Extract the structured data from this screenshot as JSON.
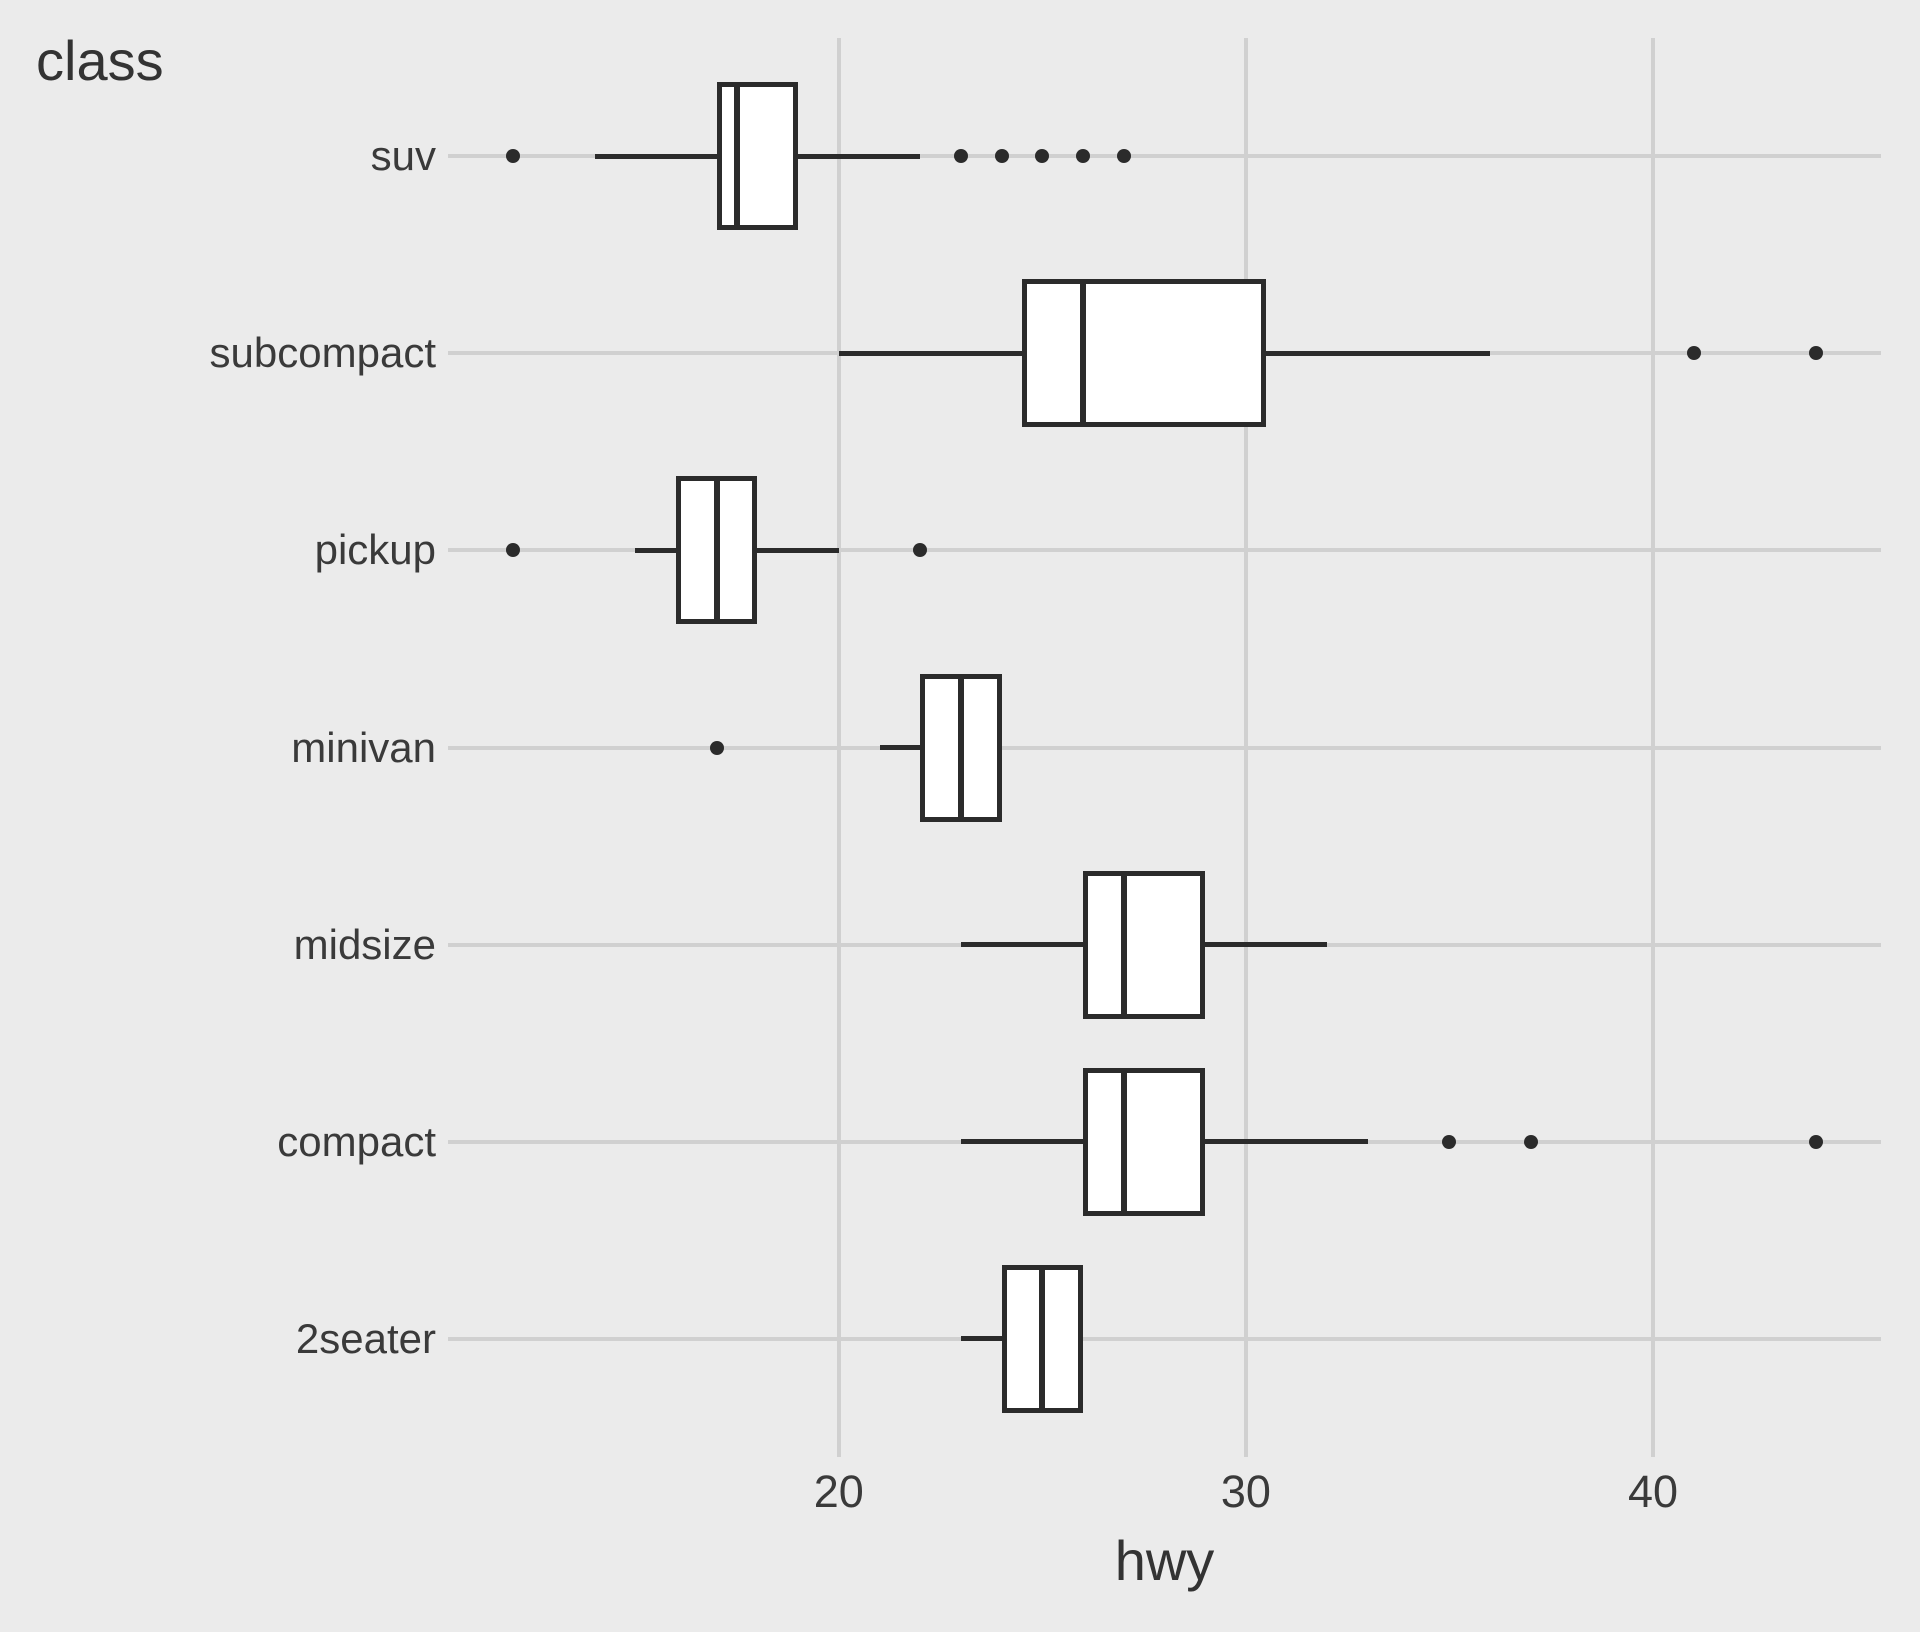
{
  "chart_data": {
    "type": "boxplot",
    "orientation": "horizontal",
    "title": "",
    "xlabel": "hwy",
    "ylabel": "class",
    "xlim": [
      10.4,
      45.6
    ],
    "x_ticks": [
      20,
      30,
      40
    ],
    "x_tick_labels": [
      "20",
      "30",
      "40"
    ],
    "grid": "major-only",
    "legend": "none",
    "categories_top_to_bottom": [
      "suv",
      "subcompact",
      "pickup",
      "minivan",
      "midsize",
      "compact",
      "2seater"
    ],
    "series": [
      {
        "category": "suv",
        "whisker_low": 14,
        "q1": 17,
        "median": 17.5,
        "q3": 19,
        "whisker_high": 22,
        "outliers": [
          12,
          23,
          24,
          25,
          26,
          27
        ]
      },
      {
        "category": "subcompact",
        "whisker_low": 20,
        "q1": 24.5,
        "median": 26,
        "q3": 30.5,
        "whisker_high": 36,
        "outliers": [
          41,
          44
        ]
      },
      {
        "category": "pickup",
        "whisker_low": 15,
        "q1": 16,
        "median": 17,
        "q3": 18,
        "whisker_high": 20,
        "outliers": [
          12,
          22
        ]
      },
      {
        "category": "minivan",
        "whisker_low": 21,
        "q1": 22,
        "median": 23,
        "q3": 24,
        "whisker_high": 24,
        "outliers": [
          17
        ]
      },
      {
        "category": "midsize",
        "whisker_low": 23,
        "q1": 26,
        "median": 27,
        "q3": 29,
        "whisker_high": 32,
        "outliers": []
      },
      {
        "category": "compact",
        "whisker_low": 23,
        "q1": 26,
        "median": 27,
        "q3": 29,
        "whisker_high": 33,
        "outliers": [
          35,
          37,
          44
        ]
      },
      {
        "category": "2seater",
        "whisker_low": 23,
        "q1": 24,
        "median": 25,
        "q3": 26,
        "whisker_high": 26,
        "outliers": []
      }
    ]
  },
  "style": {
    "background": "#EBEBEB",
    "grid_color": "#D0D0D0",
    "box_fill": "#FFFFFF",
    "stroke_color": "#2B2B2B",
    "text_color": "#3A3A3A",
    "title_color": "#333333"
  }
}
